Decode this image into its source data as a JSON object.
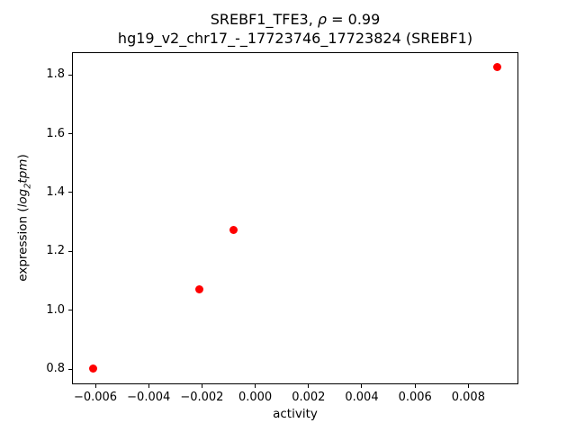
{
  "chart_data": {
    "type": "scatter",
    "title": {
      "pre": "SREBF1_TFE3, ",
      "rho": "ρ",
      "post": " = 0.99"
    },
    "subtitle": "hg19_v2_chr17_-_17723746_17723824 (SREBF1)",
    "xlabel": "activity",
    "ylabel": {
      "pre": "expression (",
      "log": "log",
      "sub": "2",
      "tpm": "tpm",
      "post": ")"
    },
    "points": [
      {
        "x": -0.0061,
        "y": 0.803
      },
      {
        "x": -0.0021,
        "y": 1.072
      },
      {
        "x": -0.0008,
        "y": 1.274
      },
      {
        "x": 0.0091,
        "y": 1.828
      }
    ],
    "xlim": [
      -0.00688,
      0.00988
    ],
    "ylim": [
      0.748,
      1.877
    ],
    "xticks": [
      -0.006,
      -0.004,
      -0.002,
      0.0,
      0.002,
      0.004,
      0.006,
      0.008
    ],
    "xtick_labels": [
      "−0.006",
      "−0.004",
      "−0.002",
      "0.000",
      "0.002",
      "0.004",
      "0.006",
      "0.008"
    ],
    "yticks": [
      0.8,
      1.0,
      1.2,
      1.4,
      1.6,
      1.8
    ],
    "ytick_labels": [
      "0.8",
      "1.0",
      "1.2",
      "1.4",
      "1.6",
      "1.8"
    ],
    "marker_color": "#ff0000",
    "grid": false,
    "legend_position": "none",
    "correlation": 0.99
  }
}
